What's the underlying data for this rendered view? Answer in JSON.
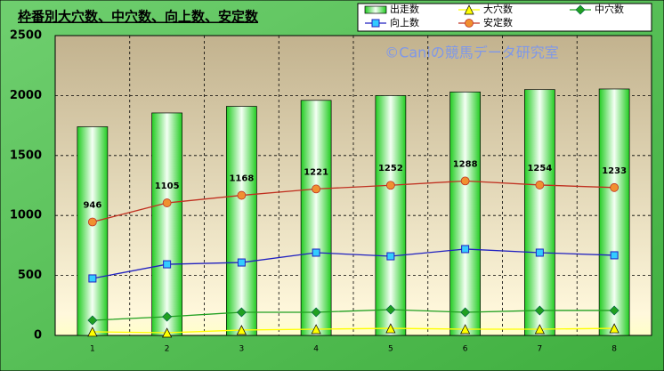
{
  "chart_data": {
    "type": "combo",
    "title": "枠番別大穴数、中穴数、向上数、安定数",
    "annotation": "©Caniの競馬データ研究室",
    "categories": [
      "1",
      "2",
      "3",
      "4",
      "5",
      "6",
      "7",
      "8"
    ],
    "ylim": [
      0,
      2500
    ],
    "yticks": [
      0,
      500,
      1000,
      1500,
      2000,
      2500
    ],
    "grid": true,
    "legend": "top-right",
    "series": [
      {
        "name": "出走数",
        "kind": "bar",
        "color": "#22dd22",
        "values": [
          1740,
          1855,
          1910,
          1960,
          2000,
          2030,
          2050,
          2055
        ]
      },
      {
        "name": "大穴数",
        "kind": "line",
        "marker": "triangle",
        "color": "#ffff00",
        "values": [
          30,
          22,
          45,
          52,
          59,
          52,
          52,
          59
        ]
      },
      {
        "name": "中穴数",
        "kind": "line",
        "marker": "diamond",
        "color": "#20a020",
        "values": [
          126,
          156,
          193,
          193,
          215,
          193,
          208,
          208
        ]
      },
      {
        "name": "向上数",
        "kind": "line",
        "marker": "square",
        "color": "#2020c0",
        "values": [
          475,
          593,
          608,
          690,
          660,
          720,
          690,
          668
        ]
      },
      {
        "name": "安定数",
        "kind": "line",
        "marker": "circle",
        "color": "#c03020",
        "labels": true,
        "values": [
          946,
          1105,
          1168,
          1221,
          1252,
          1288,
          1254,
          1233
        ]
      }
    ]
  }
}
